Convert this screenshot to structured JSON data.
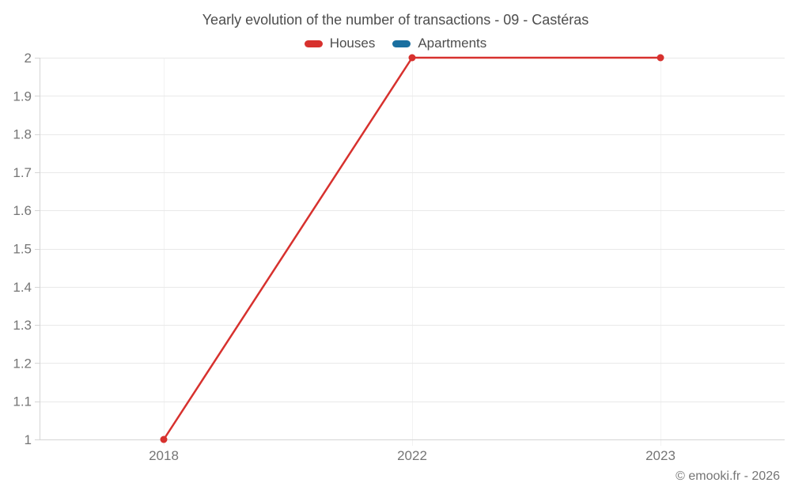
{
  "page": {
    "watermark": "© emooki.fr - 2026"
  },
  "chart_data": {
    "type": "line",
    "title": "Yearly evolution of the number of transactions - 09 - Castéras",
    "categories": [
      "2018",
      "2022",
      "2023"
    ],
    "series": [
      {
        "name": "Houses",
        "color": "#d7312e",
        "values": [
          1,
          2,
          2
        ]
      },
      {
        "name": "Apartments",
        "color": "#1a6fa0",
        "values": []
      }
    ],
    "ylim": [
      1,
      2
    ],
    "ytick_step": 0.1,
    "xlabel": "",
    "ylabel": "",
    "grid": true,
    "legend_position": "top",
    "colors": {
      "axis_line": "#d5d5d5",
      "grid_horizontal": "#e9e9e9",
      "grid_vertical": "#f2f2f2",
      "tick_label": "#757575",
      "title_text": "#4d4d4d"
    }
  }
}
